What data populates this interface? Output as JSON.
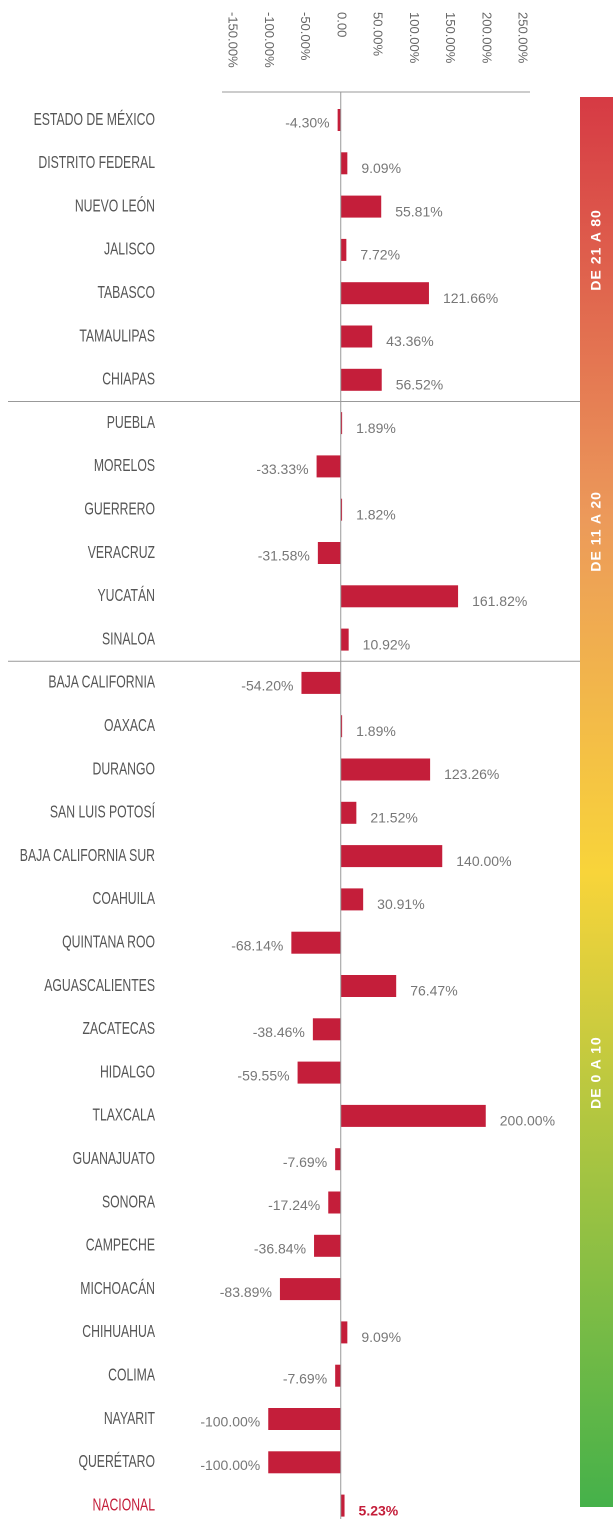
{
  "chart_data": {
    "type": "bar",
    "xlim": [
      -150,
      250
    ],
    "xticks": [
      {
        "value": -150,
        "label": "-150.00%"
      },
      {
        "value": -100,
        "label": "-100.00%"
      },
      {
        "value": -50,
        "label": "-50.00%"
      },
      {
        "value": 0,
        "label": "0.00"
      },
      {
        "value": 50,
        "label": "50.00%"
      },
      {
        "value": 100,
        "label": "100.00%"
      },
      {
        "value": 150,
        "label": "150.00%"
      },
      {
        "value": 200,
        "label": "200.00%"
      },
      {
        "value": 250,
        "label": "250.00%"
      }
    ],
    "color": "#c41e3a",
    "groups": [
      {
        "label": "DE 21 A 80",
        "categories": [
          "ESTADO DE MÉXICO",
          "DISTRITO FEDERAL",
          "NUEVO LEÓN",
          "JALISCO",
          "TABASCO",
          "TAMAULIPAS",
          "CHIAPAS"
        ],
        "values": [
          -4.3,
          9.09,
          55.81,
          7.72,
          121.66,
          43.36,
          56.52
        ],
        "value_labels": [
          "-4.30%",
          "9.09%",
          "55.81%",
          "7.72%",
          "121.66%",
          "43.36%",
          "56.52%"
        ]
      },
      {
        "label": "DE 11 A  20",
        "categories": [
          "PUEBLA",
          "MORELOS",
          "GUERRERO",
          "VERACRUZ",
          "YUCATÁN",
          "SINALOA"
        ],
        "values": [
          1.89,
          -33.33,
          1.82,
          -31.58,
          161.82,
          10.92
        ],
        "value_labels": [
          "1.89%",
          "-33.33%",
          "1.82%",
          "-31.58%",
          "161.82%",
          "10.92%"
        ]
      },
      {
        "label": "DE 0 A 10",
        "categories": [
          "BAJA CALIFORNIA",
          "OAXACA",
          "DURANGO",
          "SAN LUIS POTOSÍ",
          "BAJA CALIFORNIA SUR",
          "COAHUILA",
          "QUINTANA ROO",
          "AGUASCALIENTES",
          "ZACATECAS",
          "HIDALGO",
          "TLAXCALA",
          "GUANAJUATO",
          "SONORA",
          "CAMPECHE",
          "MICHOACÁN",
          "CHIHUAHUA",
          "COLIMA",
          "NAYARIT",
          "QUERÉTARO"
        ],
        "values": [
          -54.2,
          1.89,
          123.26,
          21.52,
          140,
          30.91,
          -68.14,
          76.47,
          -38.46,
          -59.55,
          200,
          -7.69,
          -17.24,
          -36.84,
          -83.89,
          9.09,
          -7.69,
          -100,
          -100
        ],
        "value_labels": [
          "-54.20%",
          "1.89%",
          "123.26%",
          "21.52%",
          "140.00%",
          "30.91%",
          "-68.14%",
          "76.47%",
          "-38.46%",
          "-59.55%",
          "200.00%",
          "-7.69%",
          "-17.24%",
          "-36.84%",
          "-83.89%",
          "9.09%",
          "-7.69%",
          "-100.00%",
          "-100.00%"
        ]
      }
    ],
    "total": {
      "category": "NACIONAL",
      "value": 5.23,
      "value_label": "5.23%"
    }
  }
}
